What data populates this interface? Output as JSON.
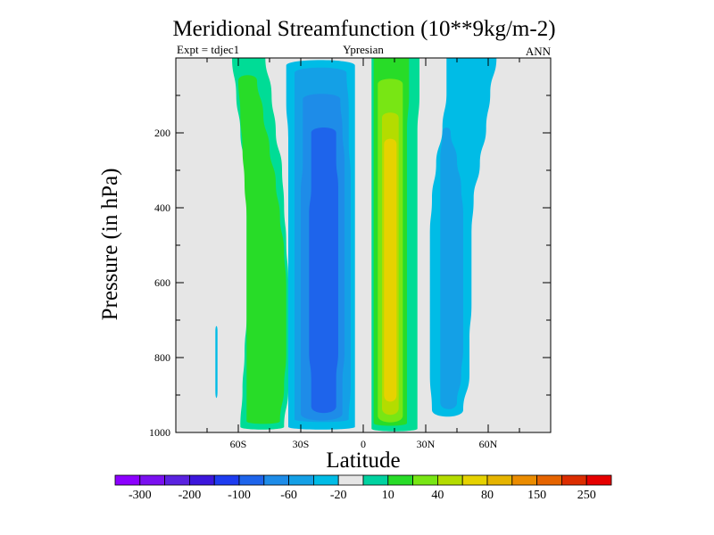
{
  "chart_data": {
    "type": "contour",
    "title": "Meridional Streamfunction (10**9kg/m-2)",
    "left_label": "Expt = tdjec1",
    "center_label": "Ypresian",
    "right_label": "ANN",
    "xlabel": "Latitude",
    "ylabel": "Pressure (in hPa)",
    "xlim": [
      -90,
      90
    ],
    "ylim": [
      0,
      1000
    ],
    "y_reversed": true,
    "x_ticks": [
      {
        "value": -60,
        "label": "60S"
      },
      {
        "value": -30,
        "label": "30S"
      },
      {
        "value": 0,
        "label": "0"
      },
      {
        "value": 30,
        "label": "30N"
      },
      {
        "value": 60,
        "label": "60N"
      }
    ],
    "y_ticks": [
      {
        "value": 200,
        "label": "200"
      },
      {
        "value": 400,
        "label": "400"
      },
      {
        "value": 600,
        "label": "600"
      },
      {
        "value": 800,
        "label": "800"
      },
      {
        "value": 1000,
        "label": "1000"
      }
    ],
    "background_color": "#e6e6e6",
    "colorbar": {
      "colors": [
        "#8c00ff",
        "#7a10f0",
        "#5a22e0",
        "#3c16dc",
        "#1e3cf0",
        "#1e64eb",
        "#1e8ce8",
        "#14a0e6",
        "#00bce6",
        "#e6e6e6",
        "#00d2a0",
        "#28dc28",
        "#78e614",
        "#b4dc00",
        "#e6d200",
        "#e6b400",
        "#eb8c00",
        "#e66400",
        "#dc2d00",
        "#e60000"
      ],
      "labels": [
        "-300",
        "-200",
        "-100",
        "-60",
        "-20",
        "10",
        "40",
        "80",
        "150",
        "250"
      ]
    },
    "regions": [
      {
        "name": "south-green-cell-outer",
        "color": "#00dc96",
        "lat_west": [
          -63,
          -61,
          -59,
          -57,
          -56,
          -56,
          -56,
          -56,
          -57,
          -58,
          -59
        ],
        "lat_east": [
          -47,
          -44,
          -42,
          -39,
          -38,
          -37,
          -36,
          -36,
          -36,
          -36,
          -38
        ],
        "p_top": 0,
        "p_bottom": 985
      },
      {
        "name": "south-green-cell-inner",
        "color": "#28dc28",
        "lat_west": [
          -60,
          -59,
          -58,
          -57,
          -56,
          -56,
          -56,
          -56,
          -56,
          -56,
          -56
        ],
        "lat_east": [
          -51,
          -48,
          -45,
          -42,
          -40,
          -38,
          -37,
          -37,
          -37,
          -38,
          -40
        ],
        "p_top": 60,
        "p_bottom": 970
      },
      {
        "name": "south-blue-cell-outer",
        "color": "#00bce6",
        "lat_west": [
          -37,
          -37,
          -36,
          -36,
          -36,
          -36,
          -36,
          -36,
          -36,
          -36,
          -36
        ],
        "lat_east": [
          -4,
          -4,
          -4,
          -4,
          -4,
          -4,
          -4,
          -4,
          -4,
          -4,
          -4
        ],
        "p_top": 20,
        "p_bottom": 985
      },
      {
        "name": "south-blue-cell-level2",
        "color": "#14a0e6",
        "lat_west": [
          -33,
          -33,
          -33,
          -33,
          -33,
          -33,
          -33,
          -33,
          -33,
          -33,
          -33
        ],
        "lat_east": [
          -8,
          -7,
          -7,
          -6,
          -6,
          -6,
          -6,
          -6,
          -6,
          -6,
          -7
        ],
        "p_top": 40,
        "p_bottom": 965
      },
      {
        "name": "south-blue-cell-level3",
        "color": "#1e8ce8",
        "lat_west": [
          -29,
          -29,
          -29,
          -30,
          -30,
          -30,
          -30,
          -30,
          -30,
          -30,
          -30
        ],
        "lat_east": [
          -11,
          -10,
          -9,
          -9,
          -9,
          -9,
          -9,
          -9,
          -9,
          -10,
          -10
        ],
        "p_top": 110,
        "p_bottom": 950
      },
      {
        "name": "south-blue-cell-core",
        "color": "#1e64eb",
        "lat_west": [
          -25,
          -25,
          -25,
          -26,
          -26,
          -26,
          -26,
          -26,
          -26,
          -25,
          -25
        ],
        "lat_east": [
          -13,
          -13,
          -12,
          -12,
          -12,
          -12,
          -12,
          -12,
          -12,
          -13,
          -13
        ],
        "p_top": 200,
        "p_bottom": 930
      },
      {
        "name": "north-green-cell-outer",
        "color": "#00dc96",
        "lat_west": [
          4,
          4,
          4,
          4,
          4,
          4,
          4,
          4,
          4,
          4,
          4
        ],
        "lat_east": [
          27,
          27,
          26,
          26,
          26,
          26,
          26,
          26,
          26,
          26,
          26
        ],
        "p_top": 0,
        "p_bottom": 990
      },
      {
        "name": "north-green-cell-level2",
        "color": "#28dc28",
        "lat_west": [
          5,
          5,
          5,
          5,
          5,
          5,
          5,
          5,
          5,
          5,
          5
        ],
        "lat_east": [
          22,
          22,
          21,
          21,
          21,
          21,
          21,
          21,
          21,
          21,
          21
        ],
        "p_top": 0,
        "p_bottom": 975
      },
      {
        "name": "north-green-cell-level3",
        "color": "#78e614",
        "lat_west": [
          7,
          7,
          7,
          7,
          7,
          7,
          7,
          7,
          7,
          7,
          7
        ],
        "lat_east": [
          19,
          19,
          19,
          19,
          19,
          19,
          19,
          19,
          19,
          19,
          19
        ],
        "p_top": 70,
        "p_bottom": 955
      },
      {
        "name": "north-green-cell-level4",
        "color": "#b4dc00",
        "lat_west": [
          9,
          9,
          9,
          9,
          9,
          9,
          9,
          9,
          9,
          9,
          9
        ],
        "lat_east": [
          17,
          17,
          17,
          17,
          17,
          17,
          17,
          17,
          17,
          17,
          17
        ],
        "p_top": 160,
        "p_bottom": 935
      },
      {
        "name": "north-green-cell-core",
        "color": "#e6d200",
        "lat_west": [
          10,
          10,
          10,
          10,
          10,
          10,
          10,
          10,
          10,
          10,
          10
        ],
        "lat_east": [
          16,
          16,
          16,
          16,
          16,
          16,
          16,
          16,
          16,
          16,
          16
        ],
        "p_top": 230,
        "p_bottom": 900
      },
      {
        "name": "north-blue-cell-outer",
        "color": "#00bce6",
        "lat_west": [
          40,
          40,
          38,
          35,
          33,
          32,
          32,
          32,
          32,
          32,
          33
        ],
        "lat_east": [
          64,
          61,
          59,
          56,
          53,
          52,
          52,
          52,
          51,
          51,
          48
        ],
        "p_top": 0,
        "p_bottom": 940
      },
      {
        "name": "north-blue-cell-inner",
        "color": "#14a0e6",
        "lat_west": [
          38,
          37,
          37,
          37,
          37,
          37,
          37,
          37,
          37,
          37,
          37
        ],
        "lat_east": [
          42,
          45,
          47,
          48,
          48,
          48,
          48,
          48,
          48,
          47,
          45
        ],
        "p_top": 200,
        "p_bottom": 920
      },
      {
        "name": "polar-blue-sliver",
        "color": "#00bce6",
        "lat_west": [
          -71,
          -71,
          -71
        ],
        "lat_east": [
          -70,
          -70,
          -70
        ],
        "p_top": 730,
        "p_bottom": 890
      }
    ]
  }
}
